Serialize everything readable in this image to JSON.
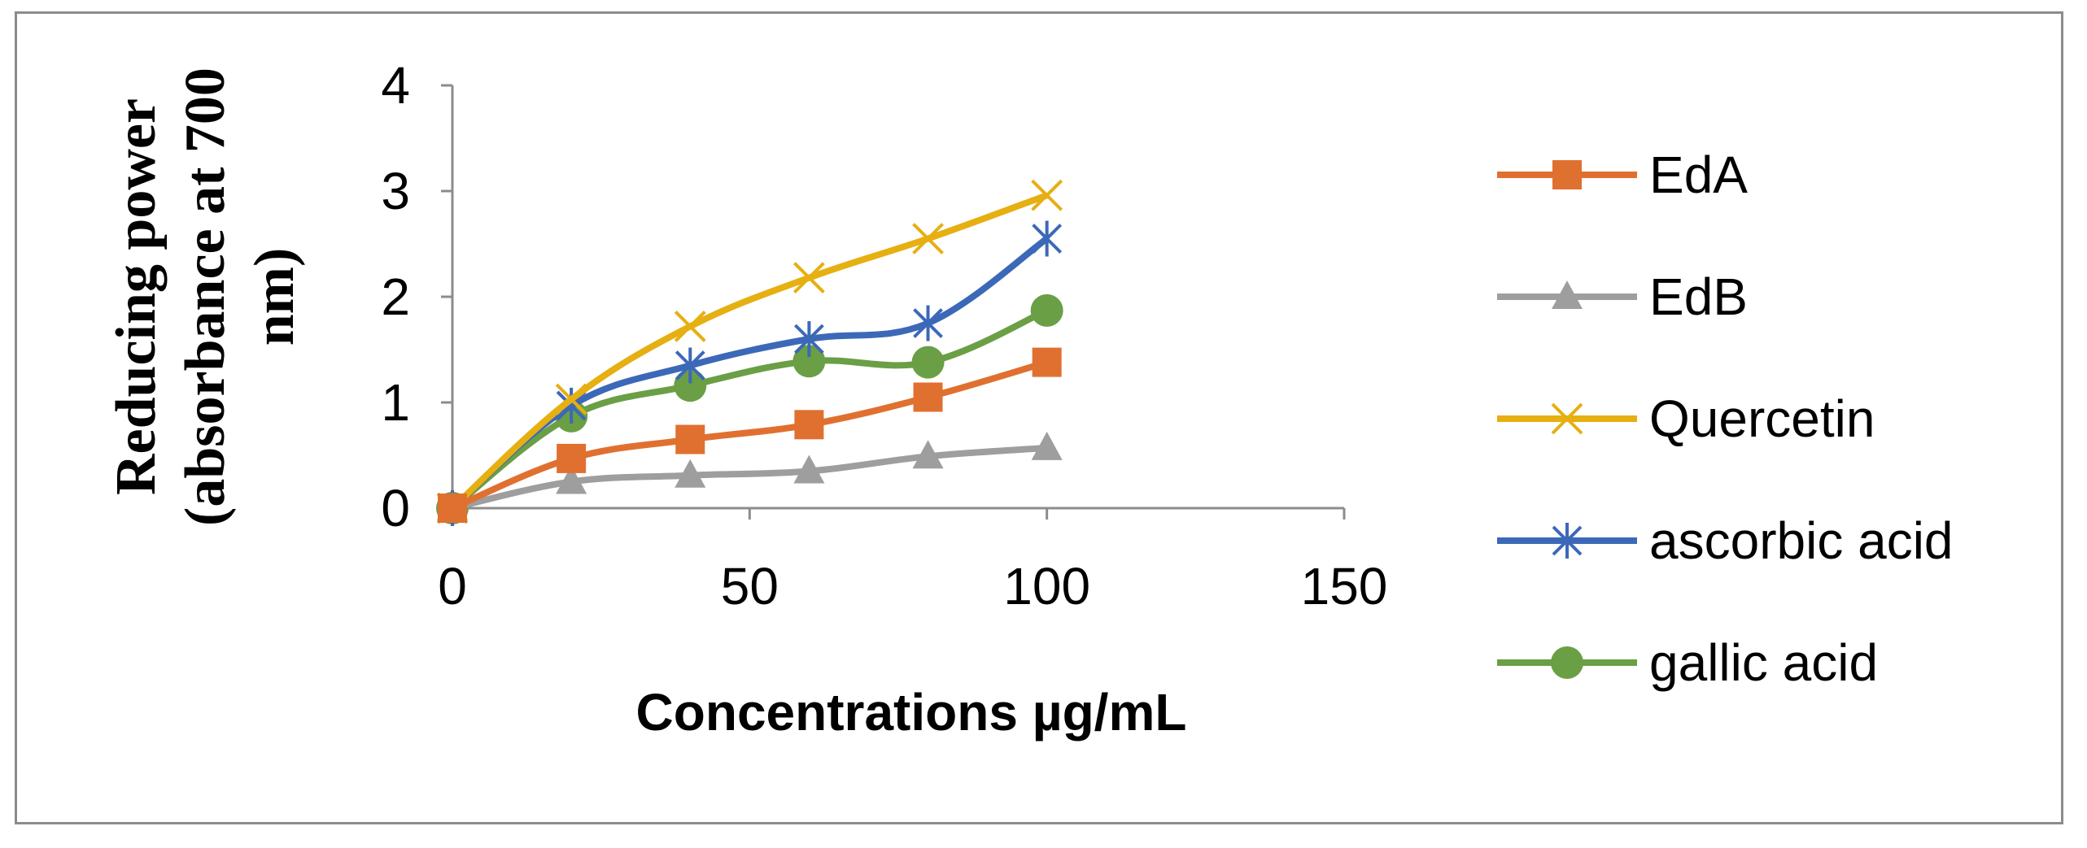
{
  "chart_data": {
    "type": "line",
    "title": "",
    "xlabel": "Concentrations µg/mL",
    "ylabel_lines": [
      "Reducing power",
      "(absorbance at 700",
      "nm)"
    ],
    "xlim": [
      0,
      150
    ],
    "ylim": [
      0,
      4
    ],
    "xticks": [
      "0",
      "50",
      "100",
      "150"
    ],
    "yticks": [
      "0",
      "1",
      "2",
      "3",
      "4"
    ],
    "xtick_values": [
      0,
      50,
      100,
      150
    ],
    "ytick_values": [
      0,
      1,
      2,
      3,
      4
    ],
    "grid": false,
    "legend_position": "right",
    "x": [
      0,
      20,
      40,
      60,
      80,
      100
    ],
    "series": [
      {
        "name": "EdA",
        "color": "#E07030",
        "marker": "square",
        "values": [
          0,
          0.47,
          0.65,
          0.79,
          1.05,
          1.38
        ]
      },
      {
        "name": "EdB",
        "color": "#9E9E9E",
        "marker": "triangle",
        "values": [
          0,
          0.25,
          0.31,
          0.35,
          0.49,
          0.57
        ]
      },
      {
        "name": "Quercetin",
        "color": "#E6AF12",
        "marker": "x",
        "values": [
          0,
          1.03,
          1.72,
          2.18,
          2.55,
          2.96
        ]
      },
      {
        "name": "ascorbic acid",
        "color": "#3C68B8",
        "marker": "star",
        "values": [
          0,
          0.97,
          1.35,
          1.6,
          1.75,
          2.55
        ]
      },
      {
        "name": "gallic acid",
        "color": "#6A9F45",
        "marker": "circle",
        "values": [
          0,
          0.87,
          1.16,
          1.39,
          1.38,
          1.87
        ]
      }
    ]
  }
}
